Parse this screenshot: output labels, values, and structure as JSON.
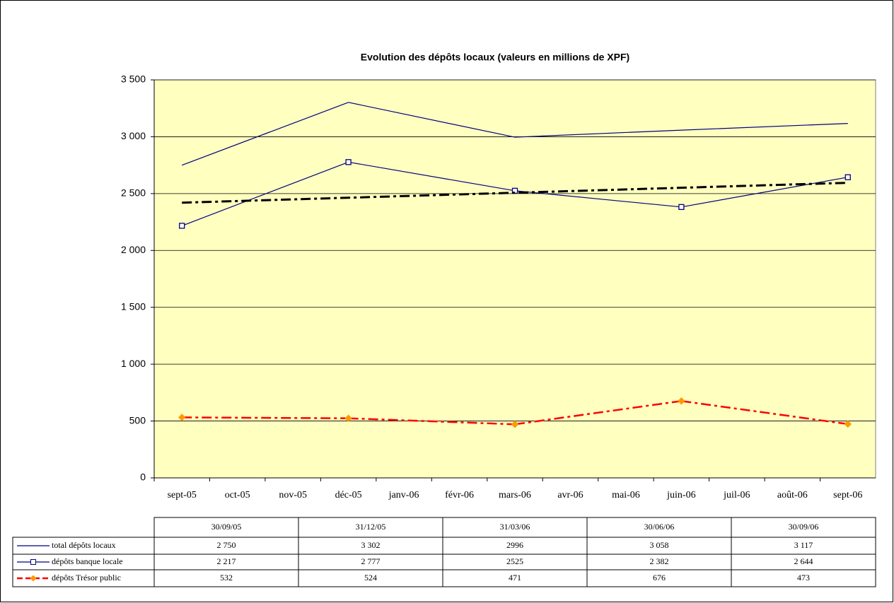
{
  "chart_data": {
    "type": "line",
    "title": "Evolution des dépôts locaux (valeurs en millions de XPF)",
    "categories": [
      "sept-05",
      "oct-05",
      "nov-05",
      "déc-05",
      "janv-06",
      "févr-06",
      "mars-06",
      "avr-06",
      "mai-06",
      "juin-06",
      "juil-06",
      "août-06",
      "sept-06"
    ],
    "ylim": [
      0,
      3500
    ],
    "yticks": [
      0,
      500,
      {
        "value": 1000,
        "label": "1 000"
      },
      {
        "value": 1500,
        "label": "1 500"
      },
      {
        "value": 2000,
        "label": "2 000"
      },
      {
        "value": 2500,
        "label": "2 500"
      },
      {
        "value": 3000,
        "label": "3 000"
      },
      {
        "value": 3500,
        "label": "3 500"
      }
    ],
    "grid": true,
    "span_gaps": true,
    "plot_background": "#ffffc0",
    "series": [
      {
        "name": "total dépôts locaux",
        "color": "#000080",
        "dash": "solid",
        "marker": "none",
        "values": [
          2750,
          null,
          null,
          3302,
          null,
          null,
          2996,
          null,
          null,
          3058,
          null,
          null,
          3117
        ],
        "value_labels": [
          "2 750",
          null,
          null,
          "3 302",
          null,
          null,
          "2996",
          null,
          null,
          "3 058",
          null,
          null,
          "3 117"
        ]
      },
      {
        "name": "dépôts banque locale",
        "color": "#000080",
        "dash": "solid",
        "marker": "square",
        "values": [
          2217,
          null,
          null,
          2777,
          null,
          null,
          2525,
          null,
          null,
          2382,
          null,
          null,
          2644
        ],
        "value_labels": [
          "2 217",
          null,
          null,
          "2 777",
          null,
          null,
          "2525",
          null,
          null,
          "2 382",
          null,
          null,
          "2 644"
        ]
      },
      {
        "name": "dépôts Trésor public",
        "color": "#ff0000",
        "dash": "dash-dot",
        "marker": "diamond",
        "marker_color": "#ff9900",
        "values": [
          532,
          null,
          null,
          524,
          null,
          null,
          471,
          null,
          null,
          676,
          null,
          null,
          473
        ],
        "value_labels": [
          "532",
          null,
          null,
          "524",
          null,
          null,
          "471",
          null,
          null,
          "676",
          null,
          null,
          "473"
        ]
      },
      {
        "color": "#000000",
        "dash": "dash-dot",
        "marker": "none",
        "width": 3,
        "values": [
          2420,
          null,
          null,
          null,
          null,
          null,
          null,
          null,
          null,
          null,
          null,
          null,
          2595
        ]
      }
    ],
    "table": {
      "columns": [
        "30/09/05",
        "31/12/05",
        "31/03/06",
        "30/06/06",
        "30/09/06"
      ]
    }
  }
}
